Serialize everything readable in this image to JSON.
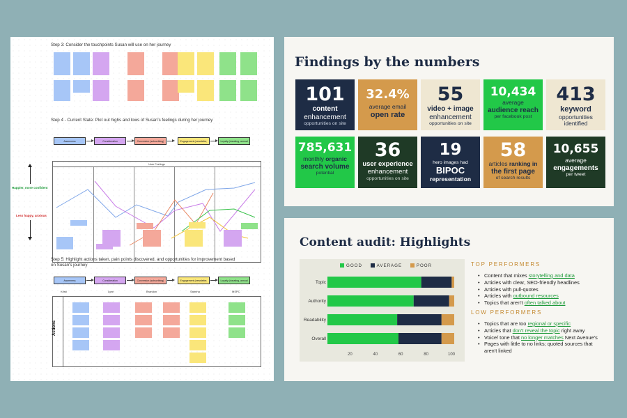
{
  "journey": {
    "step3": "Step 3: Consider the touchpoints Susan will use on her journey",
    "step4": "Step 4 - Current State: Plot out highs and lows of Susan's feelings during her journey",
    "step5": "Step 5: Highlight actions taken, pain points discovered, and opportunities for improvement based on Susan's journey",
    "stages": [
      "Awareness",
      "Consideration",
      "Conversion (subscribing)",
      "Engagement (newsletter, regular reading, sharing)",
      "Loyalty (donating, annual generation)"
    ],
    "feelings_header": "User Feelings",
    "happier_label": "Happier, more confident",
    "less_happy_label": "Less happy, anxious",
    "personas": [
      "Kristi",
      "Lynn",
      "Brandon",
      "Sabrina",
      "MSPC"
    ],
    "actions_label": "Actions",
    "colors": {
      "awareness": "#a7c6f7",
      "consideration": "#d4a6f0",
      "conversion": "#f4a89a",
      "engagement": "#fae67a",
      "loyalty": "#8fe28a"
    }
  },
  "findings": {
    "title": "Findings by the numbers",
    "tiles": [
      {
        "num": "101",
        "l1": "content",
        "l2": "enhancement",
        "l3": "opportunities on site"
      },
      {
        "num": "32.4%",
        "l1": "average email",
        "l2": "open rate"
      },
      {
        "num": "55",
        "l1": "video + image",
        "l2": "enhancement",
        "l3": "opportunities on site"
      },
      {
        "num": "10,434",
        "l1": "average",
        "l2": "audience reach",
        "l3": "per facebook post"
      },
      {
        "num": "413",
        "l1": "keyword",
        "l2": "opportunities",
        "l3": "identified"
      },
      {
        "num": "785,631",
        "l1": "monthly",
        "l1b": "organic",
        "l2": "search volume",
        "l3": "potential"
      },
      {
        "num": "36",
        "l1": "user experience",
        "l2": "enhancement",
        "l3": "opportunities on site"
      },
      {
        "num": "19",
        "l1": "hero images had",
        "l2": "BIPOC",
        "l3": "representation"
      },
      {
        "num": "58",
        "l1": "articles",
        "l1b": "ranking in",
        "l2": "the first page",
        "l3": "of search results"
      },
      {
        "num": "10,655",
        "l1": "average",
        "l2": "engagements",
        "l3": "per tweet"
      }
    ]
  },
  "audit": {
    "title": "Content audit: Highlights",
    "legend": [
      "GOOD",
      "AVERAGE",
      "POOR"
    ],
    "colors": {
      "good": "#22c848",
      "average": "#1e2c45",
      "poor": "#d49a4c"
    },
    "top_head": "TOP PERFORMERS",
    "top_items": [
      {
        "pre": "Content that mixes ",
        "link": "storytelling and data",
        "post": ""
      },
      {
        "pre": "Articles with clear, SEO-friendly headlines",
        "link": "",
        "post": ""
      },
      {
        "pre": "Articles with pull-quotes",
        "link": "",
        "post": ""
      },
      {
        "pre": "Articles with ",
        "link": "outbound resources",
        "post": ""
      },
      {
        "pre": "Topics that aren't ",
        "link": "often talked about",
        "post": ""
      }
    ],
    "low_head": "LOW PERFORMERS",
    "low_items": [
      {
        "pre": "Topics that are too ",
        "link": "regional or specific",
        "post": ""
      },
      {
        "pre": "Articles that ",
        "link": "don't reveal the topic",
        "post": " right away"
      },
      {
        "pre": "Voice/ tone that ",
        "link": "no longer matches",
        "post": " Next Avenue's"
      },
      {
        "pre": "Pages with little to no links; quoted sources that aren't linked",
        "link": "",
        "post": ""
      }
    ]
  },
  "chart_data": {
    "type": "bar",
    "orientation": "horizontal",
    "stacked": true,
    "categories": [
      "Topic",
      "Authority",
      "Readability",
      "Overall"
    ],
    "series": [
      {
        "name": "GOOD",
        "values": [
          74,
          68,
          55,
          56
        ]
      },
      {
        "name": "AVERAGE",
        "values": [
          24,
          28,
          35,
          34
        ]
      },
      {
        "name": "POOR",
        "values": [
          2,
          4,
          10,
          10
        ]
      }
    ],
    "x_ticks": [
      20,
      40,
      60,
      80,
      100
    ],
    "xlim": [
      0,
      100
    ],
    "legend_position": "top"
  }
}
